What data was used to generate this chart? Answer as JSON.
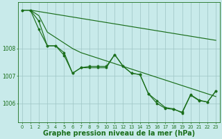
{
  "bg_color": "#c8eaea",
  "grid_color": "#9ec4c4",
  "line_color": "#1a6e1a",
  "xlabel": "Graphe pression niveau de la mer (hPa)",
  "xlabel_fontsize": 7,
  "xlim": [
    -0.5,
    23.5
  ],
  "ylim": [
    1005.3,
    1009.7
  ],
  "yticks": [
    1006,
    1007,
    1008
  ],
  "xticks": [
    0,
    1,
    2,
    3,
    4,
    5,
    6,
    7,
    8,
    9,
    10,
    11,
    12,
    13,
    14,
    15,
    16,
    17,
    18,
    19,
    20,
    21,
    22,
    23
  ],
  "s1": [
    1009.4,
    1009.4,
    1009.35,
    1009.3,
    1009.25,
    1009.2,
    1009.15,
    1009.1,
    1009.05,
    1009.0,
    1008.95,
    1008.9,
    1008.85,
    1008.8,
    1008.75,
    1008.7,
    1008.65,
    1008.6,
    1008.55,
    1008.5,
    1008.45,
    1008.4,
    1008.35,
    1008.3
  ],
  "s2": [
    1009.4,
    1009.4,
    1009.2,
    1008.6,
    1008.4,
    1008.2,
    1008.0,
    1007.85,
    1007.75,
    1007.65,
    1007.55,
    1007.45,
    1007.35,
    1007.25,
    1007.15,
    1007.05,
    1006.95,
    1006.85,
    1006.75,
    1006.65,
    1006.55,
    1006.45,
    1006.35,
    1006.25
  ],
  "s3": [
    1009.4,
    1009.4,
    1009.0,
    1008.1,
    1008.1,
    1007.85,
    1007.1,
    1007.3,
    1007.35,
    1007.35,
    1007.35,
    1007.78,
    1007.35,
    1007.1,
    1007.05,
    1006.35,
    1006.1,
    1005.85,
    1005.8,
    1005.65,
    1006.3,
    1006.1,
    1006.05,
    1006.45
  ],
  "s4": [
    1009.4,
    1009.4,
    1008.7,
    1008.1,
    1008.1,
    1007.75,
    1007.1,
    1007.3,
    1007.3,
    1007.3,
    1007.3,
    1007.78,
    1007.35,
    1007.1,
    1007.05,
    1006.35,
    1006.0,
    1005.82,
    1005.78,
    1005.68,
    1006.32,
    1006.12,
    1006.05,
    1006.45
  ]
}
